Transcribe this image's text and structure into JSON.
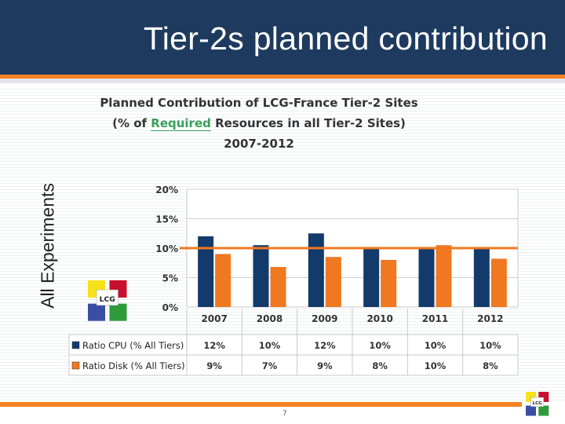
{
  "slide": {
    "title": "Tier-2s planned contribution",
    "side_label": "All Experiments",
    "page_number": "7"
  },
  "chart_data": {
    "type": "bar",
    "title_line1": "Planned Contribution of LCG-France Tier-2 Sites",
    "title_line2_prefix": "(% of ",
    "title_line2_highlight": "Required",
    "title_line2_suffix": " Resources in all Tier-2 Sites)",
    "title_line3": "2007-2012",
    "categories": [
      "2007",
      "2008",
      "2009",
      "2010",
      "2011",
      "2012"
    ],
    "series": [
      {
        "name": "Ratio CPU (% All Tiers)",
        "values": [
          12,
          10.5,
          12.5,
          10,
          10,
          10
        ],
        "table_labels": [
          "12%",
          "10%",
          "12%",
          "10%",
          "10%",
          "10%"
        ],
        "color": "#123a6b"
      },
      {
        "name": "Ratio Disk (% All Tiers)",
        "values": [
          9,
          6.8,
          8.5,
          8,
          10.5,
          8.2
        ],
        "table_labels": [
          "9%",
          "7%",
          "9%",
          "8%",
          "10%",
          "8%"
        ],
        "color": "#f07820"
      }
    ],
    "reference_line": {
      "value": 10,
      "color": "#f07820"
    },
    "ylim": [
      0,
      20
    ],
    "y_ticks": [
      "0%",
      "5%",
      "10%",
      "15%",
      "20%"
    ],
    "grid": true
  },
  "logos": {
    "chart_logo_text": "LCG",
    "corner_logo_text": "LCG"
  }
}
